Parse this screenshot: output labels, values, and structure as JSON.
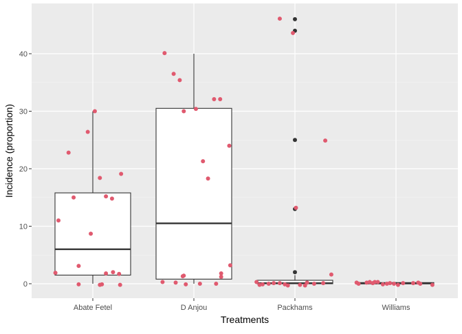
{
  "chart_data": {
    "type": "box",
    "xlabel": "Treatments",
    "ylabel": "Incidence (proportion)",
    "categories": [
      "Abate Fetel",
      "D Anjou",
      "Packhams",
      "Williams"
    ],
    "yticks": [
      0,
      10,
      20,
      30,
      40
    ],
    "ylim": [
      -2.5,
      48.5
    ],
    "grid": true,
    "colors": {
      "panel": "#EBEBEB",
      "grid_major": "#FFFFFF",
      "grid_minor": "#F5F5F5",
      "points": "#E05A6F",
      "outliers": "#333333",
      "box_line": "#333333",
      "axis_text": "#4D4D4D"
    },
    "boxes": [
      {
        "category": "Abate Fetel",
        "min": 0,
        "q1": 1.5,
        "median": 6,
        "q3": 15.8,
        "max": 30,
        "outliers": []
      },
      {
        "category": "D Anjou",
        "min": 0,
        "q1": 0.8,
        "median": 10.5,
        "q3": 30.5,
        "max": 40,
        "outliers": []
      },
      {
        "category": "Packhams",
        "min": 0,
        "q1": 0,
        "median": 0.1,
        "q3": 0.6,
        "max": 1.5,
        "outliers": [
          46,
          44,
          25,
          13,
          2
        ]
      },
      {
        "category": "Williams",
        "min": 0,
        "q1": 0,
        "median": 0.05,
        "q3": 0.2,
        "max": 0.3,
        "outliers": []
      }
    ],
    "points": [
      {
        "category": "Abate Fetel",
        "values": [
          1.9,
          11.0,
          22.8,
          15.0,
          -0.1,
          3.1,
          8.7,
          26.4,
          30.0,
          -0.2,
          18.4,
          -0.1,
          15.2,
          1.8,
          14.8,
          2.0,
          1.7,
          19.1,
          -0.2
        ],
        "jitter": [
          -0.37,
          -0.34,
          -0.24,
          -0.19,
          -0.14,
          -0.14,
          -0.02,
          -0.05,
          0.02,
          0.07,
          0.07,
          0.09,
          0.13,
          0.13,
          0.19,
          0.2,
          0.26,
          0.28,
          0.27
        ]
      },
      {
        "category": "D Anjou",
        "values": [
          0.3,
          40.1,
          0.2,
          36.5,
          35.4,
          1.3,
          1.4,
          30.0,
          -0.1,
          30.4,
          0.0,
          21.3,
          18.3,
          32.1,
          0.0,
          32.1,
          1.8,
          1.2,
          24.0,
          3.2
        ],
        "jitter": [
          -0.31,
          -0.29,
          -0.18,
          -0.2,
          -0.14,
          -0.11,
          -0.1,
          -0.1,
          -0.08,
          0.02,
          0.06,
          0.09,
          0.14,
          0.2,
          0.22,
          0.26,
          0.27,
          0.27,
          0.35,
          0.36
        ],
        "note": ""
      },
      {
        "category": "Packhams",
        "values": [
          0.3,
          -0.2,
          -0.1,
          0.0,
          0.1,
          0.1,
          46.1,
          -0.1,
          43.6,
          -0.3,
          13.2,
          -0.2,
          0.2,
          0.0,
          -0.3,
          0.1,
          24.9,
          1.6
        ],
        "jitter": [
          -0.38,
          -0.35,
          -0.32,
          -0.26,
          -0.21,
          -0.15,
          -0.15,
          -0.1,
          -0.02,
          -0.07,
          0.01,
          0.05,
          0.12,
          0.19,
          0.1,
          0.28,
          0.3,
          0.36
        ]
      },
      {
        "category": "Williams",
        "values": [
          0.2,
          0.0,
          0.2,
          0.3,
          0.1,
          0.3,
          0.3,
          -0.1,
          0.0,
          0.1,
          0.0,
          -0.2,
          0.1,
          0.1,
          0.2,
          0.0,
          -0.2
        ],
        "jitter": [
          -0.39,
          -0.37,
          -0.29,
          -0.26,
          -0.23,
          -0.21,
          -0.18,
          -0.13,
          -0.09,
          -0.06,
          -0.02,
          0.02,
          0.07,
          0.17,
          0.22,
          0.24,
          0.36
        ]
      }
    ]
  }
}
